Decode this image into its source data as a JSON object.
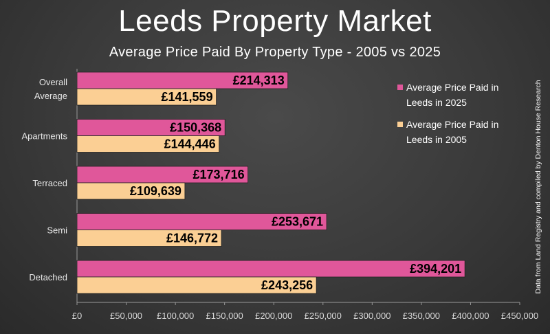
{
  "title": "Leeds Property Market",
  "subtitle": "Average Price Paid By Property Type - 2005 vs 2025",
  "source_note": "Data from Land Registry and compiled by Denton House Research",
  "colors": {
    "series_2025": "#e0579a",
    "series_2005": "#fbcf94",
    "axis": "#999999",
    "grid": "#555555"
  },
  "chart_data": {
    "type": "bar",
    "orientation": "horizontal",
    "categories": [
      [
        "Overall",
        "Average"
      ],
      [
        "Apartments"
      ],
      [
        "Terraced"
      ],
      [
        "Semi"
      ],
      [
        "Detached"
      ]
    ],
    "series": [
      {
        "name": "Average Price Paid in Leeds in 2025",
        "legend_lines": [
          "Average Price Paid in",
          "Leeds in 2025"
        ],
        "values": [
          214313,
          150368,
          173716,
          253671,
          394201
        ],
        "labels": [
          "£214,313",
          "£150,368",
          "£173,716",
          "£253,671",
          "£394,201"
        ]
      },
      {
        "name": "Average Price Paid in Leeds in 2005",
        "legend_lines": [
          "Average Price Paid in",
          "Leeds in 2005"
        ],
        "values": [
          141559,
          144446,
          109639,
          146772,
          243256
        ],
        "labels": [
          "£141,559",
          "£144,446",
          "£109,639",
          "£146,772",
          "£243,256"
        ]
      }
    ],
    "xlim": [
      0,
      450000
    ],
    "x_ticks": [
      0,
      50000,
      100000,
      150000,
      200000,
      250000,
      300000,
      350000,
      400000,
      450000
    ],
    "x_tick_labels": [
      "£0",
      "£50,000",
      "£100,000",
      "£150,000",
      "£200,000",
      "£250,000",
      "£300,000",
      "£350,000",
      "£400,000",
      "£450,000"
    ],
    "grid": false,
    "legend_position": "right"
  }
}
